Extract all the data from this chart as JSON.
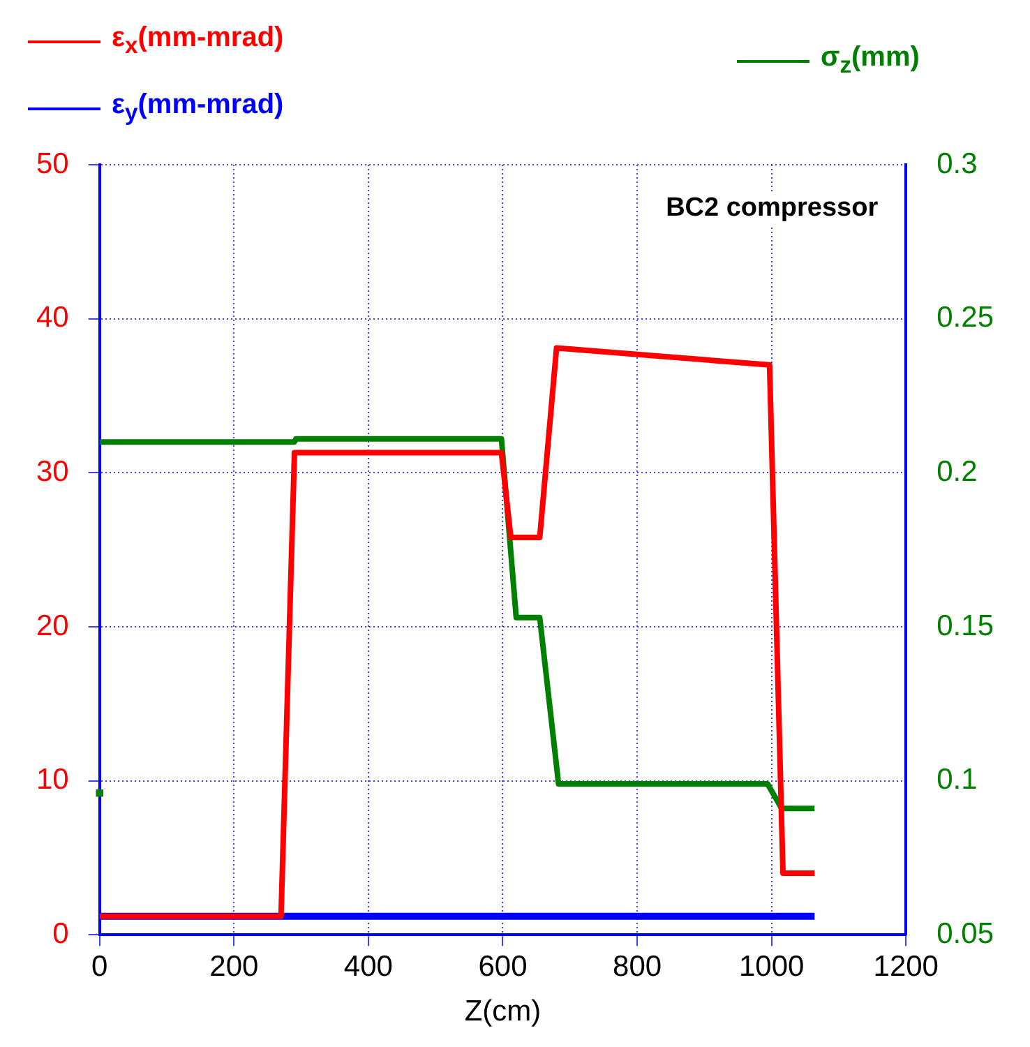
{
  "chart_data": {
    "type": "line",
    "annotations": [
      "BC2 compressor"
    ],
    "xlabel": "Z(cm)",
    "xlim": [
      0,
      1200
    ],
    "xticks": [
      0,
      200,
      400,
      600,
      800,
      1000,
      1200
    ],
    "ylim": [
      0,
      50
    ],
    "yticks": [
      0,
      10,
      20,
      30,
      40,
      50
    ],
    "y2lim": [
      0.05,
      0.3
    ],
    "y2ticks": [
      0.05,
      0.1,
      0.15,
      0.2,
      0.25,
      0.3
    ],
    "grid": true,
    "legend": "top",
    "series": [
      {
        "name": "ε$_{x}$(mm-mrad)",
        "color": "#ff0000",
        "x": [
          0,
          270,
          290,
          598,
          612,
          655,
          680,
          997,
          1017,
          1064
        ],
        "values": [
          1.2,
          1.2,
          31.3,
          31.3,
          25.8,
          25.8,
          38.1,
          37.0,
          4.0,
          4.0
        ]
      },
      {
        "name": "ε$_{y}$(mm-mrad)",
        "color": "#0000ff",
        "x": [
          0,
          1064
        ],
        "values": [
          1.2,
          1.2
        ]
      },
      {
        "name": "σ$_{z}$(mm)",
        "color": "#008000",
        "axis": "y2",
        "x": [
          0,
          290,
          292,
          598,
          620,
          655,
          683,
          994,
          1015,
          1064
        ],
        "values": [
          0.21,
          0.21,
          0.211,
          0.211,
          0.153,
          0.153,
          0.099,
          0.099,
          0.091,
          0.091
        ]
      },
      {
        "type": "scatter",
        "color": "#008000",
        "axis": "y2",
        "x": [
          0
        ],
        "values": [
          0.096
        ]
      }
    ]
  }
}
